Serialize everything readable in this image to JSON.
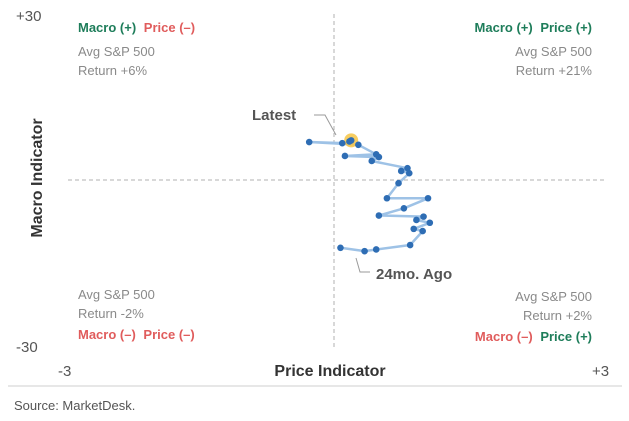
{
  "chart_data": {
    "type": "scatter",
    "xlabel": "Price Indicator",
    "ylabel": "Macro Indicator",
    "xlim": [
      -3,
      3
    ],
    "ylim": [
      -30,
      30
    ],
    "x_ticks": [
      "-3",
      "+3"
    ],
    "y_ticks": [
      "+30",
      "-30"
    ],
    "grid": "dashed zero lines",
    "series": [
      {
        "color": "#2e6db4",
        "line_color": "#9ec2e6",
        "points": [
          {
            "x": 0.05,
            "y": -12.0
          },
          {
            "x": 0.32,
            "y": -12.6
          },
          {
            "x": 0.45,
            "y": -12.3
          },
          {
            "x": 0.83,
            "y": -11.5
          },
          {
            "x": 0.97,
            "y": -9.0
          },
          {
            "x": 0.87,
            "y": -8.6
          },
          {
            "x": 1.05,
            "y": -7.5
          },
          {
            "x": 0.9,
            "y": -7.0
          },
          {
            "x": 0.98,
            "y": -6.4
          },
          {
            "x": 0.48,
            "y": -6.2
          },
          {
            "x": 0.76,
            "y": -4.9
          },
          {
            "x": 1.03,
            "y": -3.1
          },
          {
            "x": 0.57,
            "y": -3.1
          },
          {
            "x": 0.7,
            "y": -0.4
          },
          {
            "x": 0.82,
            "y": 1.4
          },
          {
            "x": 0.73,
            "y": 1.8
          },
          {
            "x": 0.8,
            "y": 2.3
          },
          {
            "x": 0.4,
            "y": 3.6
          },
          {
            "x": 0.48,
            "y": 4.3
          },
          {
            "x": 0.1,
            "y": 4.5
          },
          {
            "x": 0.45,
            "y": 4.8
          },
          {
            "x": 0.25,
            "y": 6.5
          },
          {
            "x": -0.3,
            "y": 7.0
          },
          {
            "x": 0.07,
            "y": 6.8
          },
          {
            "x": 0.15,
            "y": 7.1
          },
          {
            "x": 0.17,
            "y": 7.3
          }
        ]
      }
    ],
    "latest": {
      "x": 0.17,
      "y": 7.3,
      "color": "#f6c445",
      "label": "Latest"
    },
    "start_label": "24mo. Ago",
    "quadrants": {
      "top_left": {
        "macro": "Macro (+)",
        "price": "Price (–)",
        "line1": "Avg S&P 500",
        "line2": "Return +6%"
      },
      "top_right": {
        "macro": "Macro (+)",
        "price": "Price (+)",
        "line1": "Avg S&P 500",
        "line2": "Return +21%"
      },
      "bottom_left": {
        "macro": "Macro (–)",
        "price": "Price (–)",
        "line1": "Avg S&P 500",
        "line2": "Return -2%"
      },
      "bottom_right": {
        "macro": "Macro (–)",
        "price": "Price (+)",
        "line1": "Avg S&P 500",
        "line2": "Return +2%"
      }
    },
    "colors": {
      "positive": "#1e7d5a",
      "negative": "#e05c5c",
      "gridline": "#b0b0b0"
    }
  },
  "source": "Source: MarketDesk."
}
